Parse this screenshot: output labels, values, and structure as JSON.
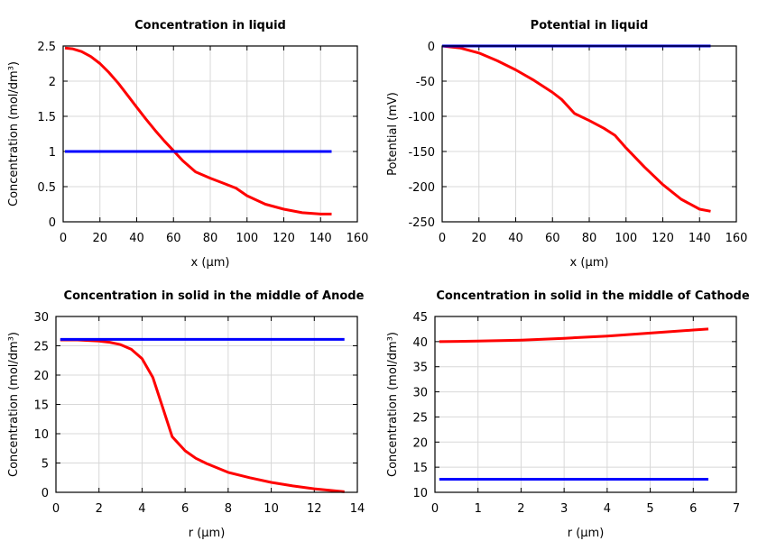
{
  "chart_data": [
    {
      "type": "line",
      "title": "Concentration in liquid",
      "xlabel": "x (µm)",
      "ylabel": "Concentration (mol/dm³)",
      "xlim": [
        0,
        160
      ],
      "ylim": [
        0,
        2.5
      ],
      "xticks": [
        "0",
        "20",
        "40",
        "60",
        "80",
        "100",
        "120",
        "140",
        "160"
      ],
      "yticks": [
        "0",
        "0.5",
        "1",
        "1.5",
        "2",
        "2.5"
      ],
      "grid": true,
      "series": [
        {
          "color": "#ff0000",
          "x": [
            1,
            5,
            10,
            15,
            20,
            25,
            30,
            35,
            40,
            45,
            50,
            55,
            60,
            65,
            72,
            80,
            88,
            94,
            100,
            110,
            120,
            130,
            140,
            146
          ],
          "y": [
            2.47,
            2.46,
            2.42,
            2.35,
            2.25,
            2.12,
            1.97,
            1.8,
            1.63,
            1.46,
            1.3,
            1.15,
            1.01,
            0.87,
            0.71,
            0.62,
            0.54,
            0.48,
            0.37,
            0.25,
            0.18,
            0.13,
            0.11,
            0.11
          ]
        },
        {
          "color": "#0000ff",
          "x": [
            1,
            146
          ],
          "y": [
            1,
            1
          ]
        }
      ]
    },
    {
      "type": "line",
      "title": "Potential in liquid",
      "xlabel": "x (µm)",
      "ylabel": "Potential (mV)",
      "xlim": [
        0,
        160
      ],
      "ylim": [
        -250,
        0
      ],
      "xticks": [
        "0",
        "20",
        "40",
        "60",
        "80",
        "100",
        "120",
        "140",
        "160"
      ],
      "yticks": [
        "-250",
        "-200",
        "-150",
        "-100",
        "-50",
        "0"
      ],
      "grid": true,
      "series": [
        {
          "color": "#ff0000",
          "x": [
            0,
            10,
            20,
            30,
            40,
            50,
            60,
            65,
            72,
            80,
            88,
            94,
            100,
            110,
            120,
            130,
            140,
            146
          ],
          "y": [
            0,
            -3,
            -10,
            -21,
            -34,
            -49,
            -66,
            -76,
            -96,
            -106,
            -117,
            -127,
            -145,
            -172,
            -197,
            -218,
            -232,
            -235
          ]
        },
        {
          "color": "#0000ff",
          "x": [
            0,
            146
          ],
          "y": [
            0,
            0
          ]
        }
      ]
    },
    {
      "type": "line",
      "title": "Concentration in solid in the middle of Anode",
      "xlabel": "r (µm)",
      "ylabel": "Concentration (mol/dm³)",
      "xlim": [
        0,
        14
      ],
      "ylim": [
        0,
        30
      ],
      "xticks": [
        "0",
        "2",
        "4",
        "6",
        "8",
        "10",
        "12",
        "14"
      ],
      "yticks": [
        "0",
        "5",
        "10",
        "15",
        "20",
        "25",
        "30"
      ],
      "grid": true,
      "series": [
        {
          "color": "#ff0000",
          "x": [
            0.2,
            1,
            2,
            2.5,
            3,
            3.5,
            4,
            4.5,
            5,
            5.4,
            6,
            6.5,
            7,
            8,
            9,
            10,
            11,
            12,
            13.4
          ],
          "y": [
            26,
            26,
            25.8,
            25.6,
            25.2,
            24.4,
            22.8,
            19.6,
            14,
            9.5,
            7.1,
            5.8,
            4.9,
            3.4,
            2.5,
            1.7,
            1.1,
            0.6,
            0.1
          ]
        },
        {
          "color": "#0000ff",
          "x": [
            0.2,
            13.4
          ],
          "y": [
            26.1,
            26.1
          ]
        }
      ]
    },
    {
      "type": "line",
      "title": "Concentration in solid in the middle of Cathode",
      "xlabel": "r (µm)",
      "ylabel": "Concentration (mol/dm³)",
      "xlim": [
        0,
        7
      ],
      "ylim": [
        10,
        45
      ],
      "xticks": [
        "0",
        "1",
        "2",
        "3",
        "4",
        "5",
        "6",
        "7"
      ],
      "yticks": [
        "10",
        "15",
        "20",
        "25",
        "30",
        "35",
        "40",
        "45"
      ],
      "grid": true,
      "series": [
        {
          "color": "#ff0000",
          "x": [
            0.1,
            1,
            2,
            3,
            4,
            5,
            6,
            6.35
          ],
          "y": [
            40.0,
            40.1,
            40.3,
            40.65,
            41.1,
            41.7,
            42.3,
            42.5
          ]
        },
        {
          "color": "#0000ff",
          "x": [
            0.1,
            6.35
          ],
          "y": [
            12.6,
            12.6
          ]
        }
      ]
    }
  ]
}
